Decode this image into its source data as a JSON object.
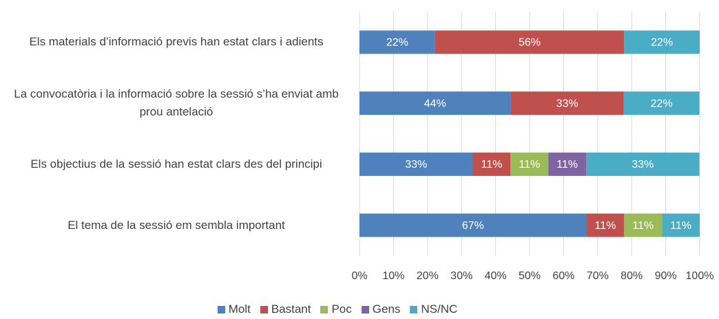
{
  "chart_data": {
    "type": "stacked_barh",
    "categories": [
      "Els materials d’informació previs han estat clars i adients",
      "La convocatòria i la informació sobre la sessió s’ha enviat amb prou antelació",
      "Els objectius de la sessió han estat clars des del principi",
      "El tema de la sessió em sembla important"
    ],
    "series": [
      {
        "name": "Molt",
        "color": "#4f81bd",
        "values": [
          22.2,
          44.4,
          33.3,
          66.7
        ],
        "value_labels": [
          "22%",
          "44%",
          "33%",
          "67%"
        ]
      },
      {
        "name": "Bastant",
        "color": "#c0504d",
        "values": [
          55.6,
          33.3,
          11.1,
          11.1
        ],
        "value_labels": [
          "56%",
          "33%",
          "11%",
          "11%"
        ]
      },
      {
        "name": "Poc",
        "color": "#9bbb59",
        "values": [
          0,
          0,
          11.1,
          11.1
        ],
        "value_labels": [
          null,
          null,
          "11%",
          "11%"
        ]
      },
      {
        "name": "Gens",
        "color": "#8064a2",
        "values": [
          0,
          0,
          11.1,
          0
        ],
        "value_labels": [
          null,
          null,
          "11%",
          null
        ]
      },
      {
        "name": "NS/NC",
        "color": "#4bacc6",
        "values": [
          22.2,
          22.2,
          33.3,
          11.1
        ],
        "value_labels": [
          "22%",
          "22%",
          "33%",
          "11%"
        ]
      }
    ],
    "xlim": [
      0,
      100
    ],
    "xticks": [
      {
        "value": 0,
        "label": "0%"
      },
      {
        "value": 10,
        "label": "10%"
      },
      {
        "value": 20,
        "label": "20%"
      },
      {
        "value": 30,
        "label": "30%"
      },
      {
        "value": 40,
        "label": "40%"
      },
      {
        "value": 50,
        "label": "50%"
      },
      {
        "value": 60,
        "label": "60%"
      },
      {
        "value": 70,
        "label": "70%"
      },
      {
        "value": 80,
        "label": "80%"
      },
      {
        "value": 90,
        "label": "90%"
      },
      {
        "value": 100,
        "label": "100%"
      }
    ],
    "grid": true,
    "legend": "bottom"
  }
}
